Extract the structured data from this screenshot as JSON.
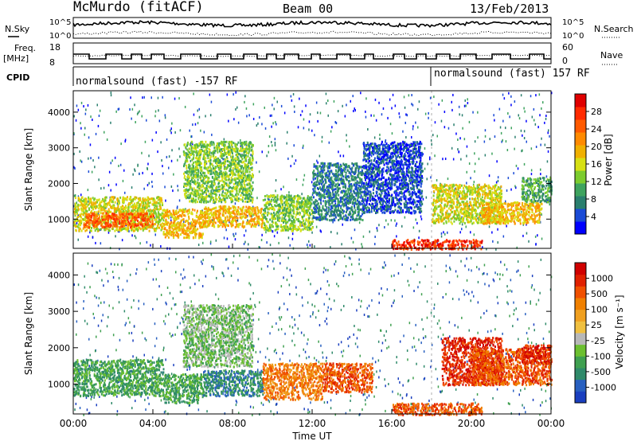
{
  "header": {
    "station": "McMurdo (fitACF)",
    "beam": "Beam 00",
    "date": "13/Feb/2013"
  },
  "summary_panels": {
    "nsky_label": "N.Sky",
    "nsearch_label": "N.Search",
    "noise_ticks_left": [
      "10^5",
      "10^0"
    ],
    "noise_ticks_right": [
      "10^5",
      "10^0"
    ],
    "freq_label_1": "Freq.",
    "freq_label_2": "[MHz]",
    "freq_ticks": [
      "18",
      "8"
    ],
    "nave_label": "Nave",
    "nave_ticks": [
      "60",
      "0"
    ],
    "cpid_label": "CPID",
    "cpid_segments": [
      "normalsound (fast) -157 RF",
      "normalsound (fast) 157 RF"
    ]
  },
  "power_colorbar": {
    "label": "Power [dB]",
    "ticks": [
      "28",
      "24",
      "20",
      "16",
      "12",
      "8",
      "4"
    ],
    "colors": [
      "#0000ff",
      "#1a4bd6",
      "#2a7f6e",
      "#3ea35e",
      "#7ccc2e",
      "#d7e014",
      "#f0b000",
      "#ff8a00",
      "#ff5a00",
      "#ff2a00",
      "#e00000"
    ]
  },
  "velocity_colorbar": {
    "label": "Velocity [m s⁻¹]",
    "ticks": [
      "1000",
      "500",
      "100",
      "25",
      "-25",
      "-100",
      "-500",
      "-1000"
    ],
    "colors": [
      "#1a3fbf",
      "#2860c0",
      "#2f8a6a",
      "#3fa050",
      "#6cc030",
      "#b8b8b8",
      "#f0c040",
      "#f0a020",
      "#f08000",
      "#f05000",
      "#e02000",
      "#d00000"
    ]
  },
  "chart_data": {
    "type": "heatmap",
    "xlabel": "Time UT",
    "ylabel": "Slant Range [km]",
    "x_ticks": [
      "00:00",
      "04:00",
      "08:00",
      "12:00",
      "16:00",
      "20:00",
      "00:00"
    ],
    "y_ticks": [
      "1000",
      "2000",
      "3000",
      "4000"
    ],
    "xlim_hours": [
      0,
      24
    ],
    "ylim_km": [
      180,
      4600
    ],
    "panels": [
      {
        "name": "power",
        "regions": [
          {
            "t0": 0.0,
            "t1": 4.5,
            "r0": 700,
            "r1": 1650,
            "level": 5
          },
          {
            "t0": 0.5,
            "t1": 4.0,
            "r0": 800,
            "r1": 1200,
            "level": 8
          },
          {
            "t0": 4.5,
            "t1": 6.5,
            "r0": 500,
            "r1": 1300,
            "level": 6
          },
          {
            "t0": 5.5,
            "t1": 9.0,
            "r0": 1500,
            "r1": 3200,
            "level": 4
          },
          {
            "t0": 6.5,
            "t1": 9.5,
            "r0": 800,
            "r1": 1400,
            "level": 6
          },
          {
            "t0": 9.5,
            "t1": 12.0,
            "r0": 700,
            "r1": 1700,
            "level": 4
          },
          {
            "t0": 12.0,
            "t1": 14.5,
            "r0": 1000,
            "r1": 2600,
            "level": 2
          },
          {
            "t0": 14.5,
            "t1": 17.5,
            "r0": 1200,
            "r1": 3200,
            "level": 1
          },
          {
            "t0": 16.0,
            "t1": 20.5,
            "r0": 180,
            "r1": 450,
            "level": 9
          },
          {
            "t0": 18.0,
            "t1": 21.5,
            "r0": 900,
            "r1": 2000,
            "level": 5
          },
          {
            "t0": 20.5,
            "t1": 23.5,
            "r0": 900,
            "r1": 1500,
            "level": 6
          },
          {
            "t0": 22.5,
            "t1": 24.0,
            "r0": 1500,
            "r1": 2200,
            "level": 3
          }
        ]
      },
      {
        "name": "velocity",
        "regions": [
          {
            "t0": 0.0,
            "t1": 4.5,
            "r0": 700,
            "r1": 1700,
            "level": 3
          },
          {
            "t0": 4.5,
            "t1": 6.5,
            "r0": 500,
            "r1": 1300,
            "level": 3
          },
          {
            "t0": 5.5,
            "t1": 9.0,
            "r0": 1500,
            "r1": 3200,
            "level": 4
          },
          {
            "t0": 6.5,
            "t1": 9.5,
            "r0": 700,
            "r1": 1400,
            "level": 2
          },
          {
            "t0": 9.5,
            "t1": 12.5,
            "r0": 600,
            "r1": 1600,
            "level": 8
          },
          {
            "t0": 12.5,
            "t1": 15.0,
            "r0": 800,
            "r1": 1600,
            "level": 9
          },
          {
            "t0": 16.0,
            "t1": 20.5,
            "r0": 180,
            "r1": 500,
            "level": 9
          },
          {
            "t0": 18.5,
            "t1": 21.5,
            "r0": 1000,
            "r1": 2300,
            "level": 10
          },
          {
            "t0": 20.0,
            "t1": 24.0,
            "r0": 1000,
            "r1": 2000,
            "level": 9
          },
          {
            "t0": 22.5,
            "t1": 24.0,
            "r0": 1600,
            "r1": 2100,
            "level": 10
          }
        ]
      }
    ],
    "beam_marker_hour": 18.0
  }
}
